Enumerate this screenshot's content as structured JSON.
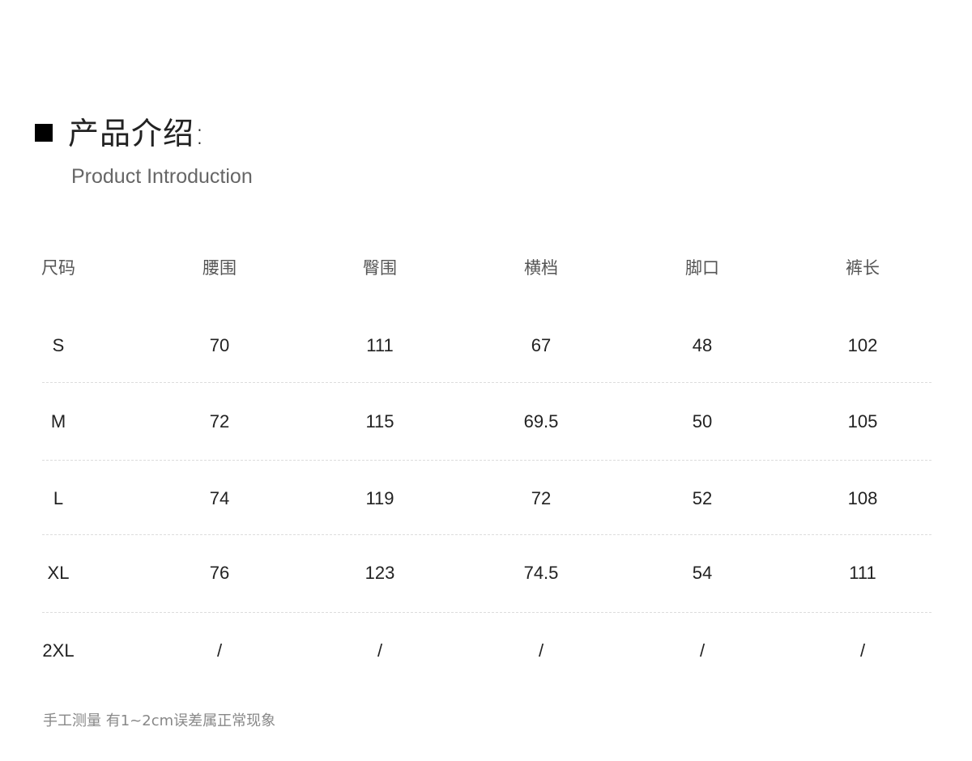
{
  "heading": {
    "title": "产品介绍:",
    "subtitle": "Product Introduction"
  },
  "size_table": {
    "headers": [
      "尺码",
      "腰围",
      "臀围",
      "横档",
      "脚口",
      "裤长"
    ],
    "rows": [
      [
        "S",
        "70",
        "111",
        "67",
        "48",
        "102"
      ],
      [
        "M",
        "72",
        "115",
        "69.5",
        "50",
        "105"
      ],
      [
        "L",
        "74",
        "119",
        "72",
        "52",
        "108"
      ],
      [
        "XL",
        "76",
        "123",
        "74.5",
        "54",
        "111"
      ],
      [
        "2XL",
        "/",
        "/",
        "/",
        "/",
        "/"
      ]
    ]
  },
  "note": "手工测量 有1~2cm误差属正常现象"
}
